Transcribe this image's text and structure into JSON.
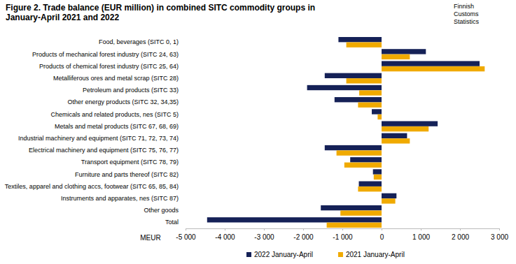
{
  "chart_data": {
    "type": "bar",
    "orientation": "horizontal",
    "title": "Figure 2. Trade balance (EUR million) in combined SITC commodity groups in January-April 2021 and 2022",
    "annotations": [
      "Finnish Customs Statistics"
    ],
    "xlabel": "MEUR",
    "categories": [
      "Food, beverages (SITC 0, 1)",
      "Products of mechanical forest industry (SITC 24, 63)",
      "Products of chemical forest industry (SITC 25, 64)",
      "Metalliferous ores and metal scrap (SITC 28)",
      "Petroleum and products (SITC 33)",
      "Other energy products (SITC 32, 34,35)",
      "Chemicals and related products, nes (SITC 5)",
      "Metals and metal products (SITC 67, 68, 69)",
      "Industrial machinery and equipment (SITC 71, 72, 73, 74)",
      "Electrical machinery and equipment (SITC 75, 76, 77)",
      "Transport equipment (SITC 78, 79)",
      "Furniture and parts thereof (SITC 82)",
      "Textiles, apparel and clothing accs, footwear (SITC 65, 85, 84)",
      "Instruments and apparates, nes (SITC 87)",
      "Other goods",
      "Total"
    ],
    "series": [
      {
        "name": "2022 January-April",
        "color": "#152157",
        "values": [
          -1100,
          1130,
          2500,
          -1450,
          -1900,
          -1200,
          -250,
          1430,
          650,
          -1450,
          -800,
          -220,
          -580,
          380,
          -1550,
          -4450
        ]
      },
      {
        "name": "2021 January-April",
        "color": "#f0aa00",
        "values": [
          -900,
          720,
          2630,
          -900,
          -570,
          -600,
          -100,
          1200,
          720,
          -1150,
          -950,
          -200,
          -600,
          350,
          -1050,
          -1400
        ]
      }
    ],
    "xlim": [
      -5000,
      3000
    ],
    "xticks": [
      {
        "value": -5000,
        "label": "-5 000"
      },
      {
        "value": -4000,
        "label": "-4 000"
      },
      {
        "value": -3000,
        "label": "-3 000"
      },
      {
        "value": -2000,
        "label": "-2 000"
      },
      {
        "value": -1000,
        "label": "-1 000"
      },
      0,
      {
        "value": 1000,
        "label": "1 000"
      },
      {
        "value": 2000,
        "label": "2 000"
      },
      {
        "value": 3000,
        "label": "3 000"
      }
    ],
    "grid": false,
    "legend": "bottom"
  }
}
